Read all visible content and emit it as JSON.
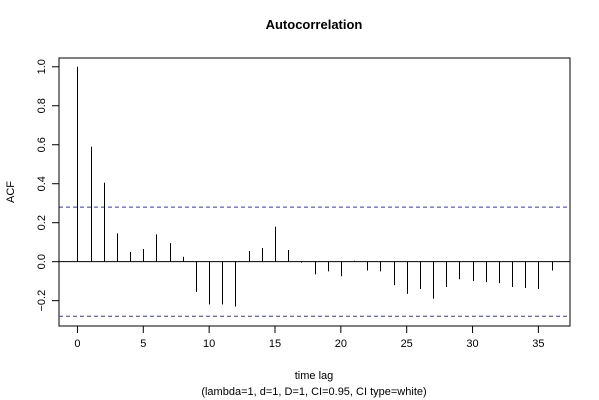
{
  "chart_data": {
    "type": "bar",
    "title": "Autocorrelation",
    "xlabel": "time lag",
    "subtitle": "(lambda=1, d=1, D=1, CI=0.95, CI type=white)",
    "ylabel": "ACF",
    "xlim": [
      -1.4,
      37.4
    ],
    "ylim": [
      -0.33,
      1.045
    ],
    "x_ticks": [
      0,
      5,
      10,
      15,
      20,
      25,
      30,
      35
    ],
    "y_ticks": [
      -0.2,
      0.0,
      0.2,
      0.4,
      0.6,
      0.8,
      1.0
    ],
    "y_tick_labels": [
      "−0.2",
      "0.0",
      "0.2",
      "0.4",
      "0.6",
      "0.8",
      "1.0"
    ],
    "ci": 0.28,
    "ci_color": "#3333cc",
    "x": [
      0,
      1,
      2,
      3,
      4,
      5,
      6,
      7,
      8,
      9,
      10,
      11,
      12,
      13,
      14,
      15,
      16,
      17,
      18,
      19,
      20,
      21,
      22,
      23,
      24,
      25,
      26,
      27,
      28,
      29,
      30,
      31,
      32,
      33,
      34,
      35,
      36
    ],
    "values": [
      1.0,
      0.59,
      0.405,
      0.145,
      0.05,
      0.065,
      0.14,
      0.095,
      0.025,
      -0.155,
      -0.22,
      -0.22,
      -0.23,
      0.055,
      0.07,
      0.18,
      0.06,
      -0.005,
      -0.065,
      -0.05,
      -0.075,
      0.005,
      -0.045,
      -0.05,
      -0.12,
      -0.165,
      -0.14,
      -0.19,
      -0.13,
      -0.09,
      -0.1,
      -0.105,
      -0.11,
      -0.13,
      -0.135,
      -0.14,
      -0.045
    ]
  }
}
